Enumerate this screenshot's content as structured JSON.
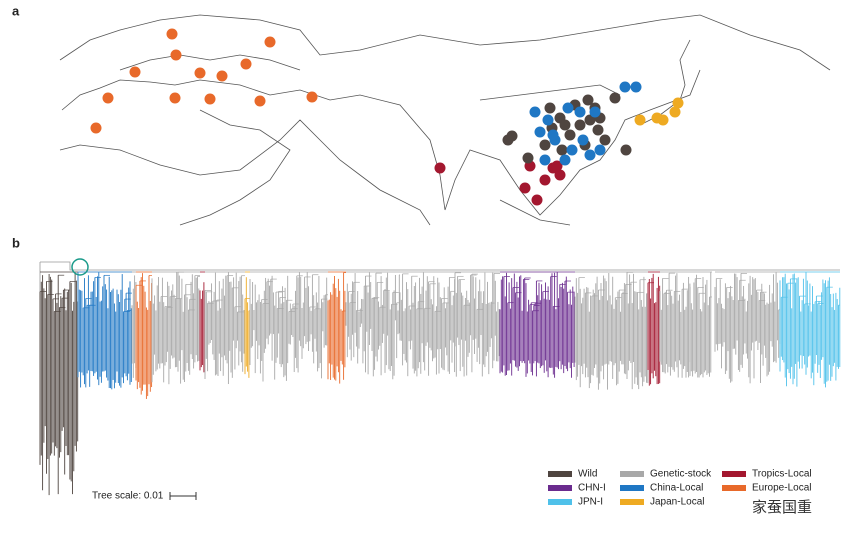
{
  "panels": {
    "a": {
      "label": "a"
    },
    "b": {
      "label": "b"
    }
  },
  "tree_scale": "Tree scale: 0.01",
  "legend": [
    {
      "label": "Wild",
      "color": "#4f4540"
    },
    {
      "label": "CHN-I",
      "color": "#6a2b8e"
    },
    {
      "label": "JPN-I",
      "color": "#4fc1ea"
    },
    {
      "label": "Genetic-stock",
      "color": "#a8a8a8"
    },
    {
      "label": "China-Local",
      "color": "#1f77c4"
    },
    {
      "label": "Japan-Local",
      "color": "#eeaa22"
    },
    {
      "label": "Tropics-Local",
      "color": "#a3172f"
    },
    {
      "label": "Europe-Local",
      "color": "#e8692a"
    }
  ],
  "watermark": "家蚕国重"
}
